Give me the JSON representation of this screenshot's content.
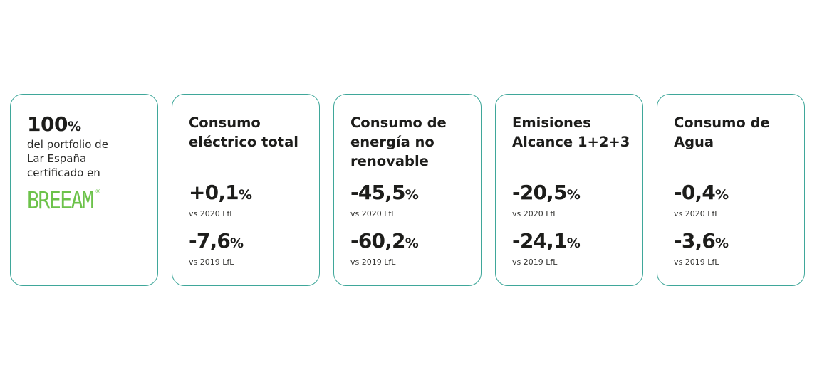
{
  "intro": {
    "percent": "100",
    "percent_unit": "%",
    "text": "del portfolio de\nLar España\ncertificado en",
    "logo_text": "BREEAM",
    "logo_mark": "®",
    "logo_color": "#6cc24a"
  },
  "accent_border": "#3fa79a",
  "cards": [
    {
      "title": "Consumo eléctrico total",
      "stats": [
        {
          "value": "+0,1",
          "unit": "%",
          "caption": "vs 2020 LfL"
        },
        {
          "value": "-7,6",
          "unit": "%",
          "caption": "vs 2019 LfL"
        }
      ]
    },
    {
      "title": "Consumo de energía no renovable",
      "stats": [
        {
          "value": "-45,5",
          "unit": "%",
          "caption": "vs 2020 LfL"
        },
        {
          "value": "-60,2",
          "unit": "%",
          "caption": "vs 2019 LfL"
        }
      ]
    },
    {
      "title": "Emisiones Alcance 1+2+3",
      "stats": [
        {
          "value": "-20,5",
          "unit": "%",
          "caption": "vs 2020 LfL"
        },
        {
          "value": "-24,1",
          "unit": "%",
          "caption": "vs 2019 LfL"
        }
      ]
    },
    {
      "title": "Consumo de Agua",
      "stats": [
        {
          "value": "-0,4",
          "unit": "%",
          "caption": "vs 2020 LfL"
        },
        {
          "value": "-3,6",
          "unit": "%",
          "caption": "vs 2019 LfL"
        }
      ]
    }
  ]
}
